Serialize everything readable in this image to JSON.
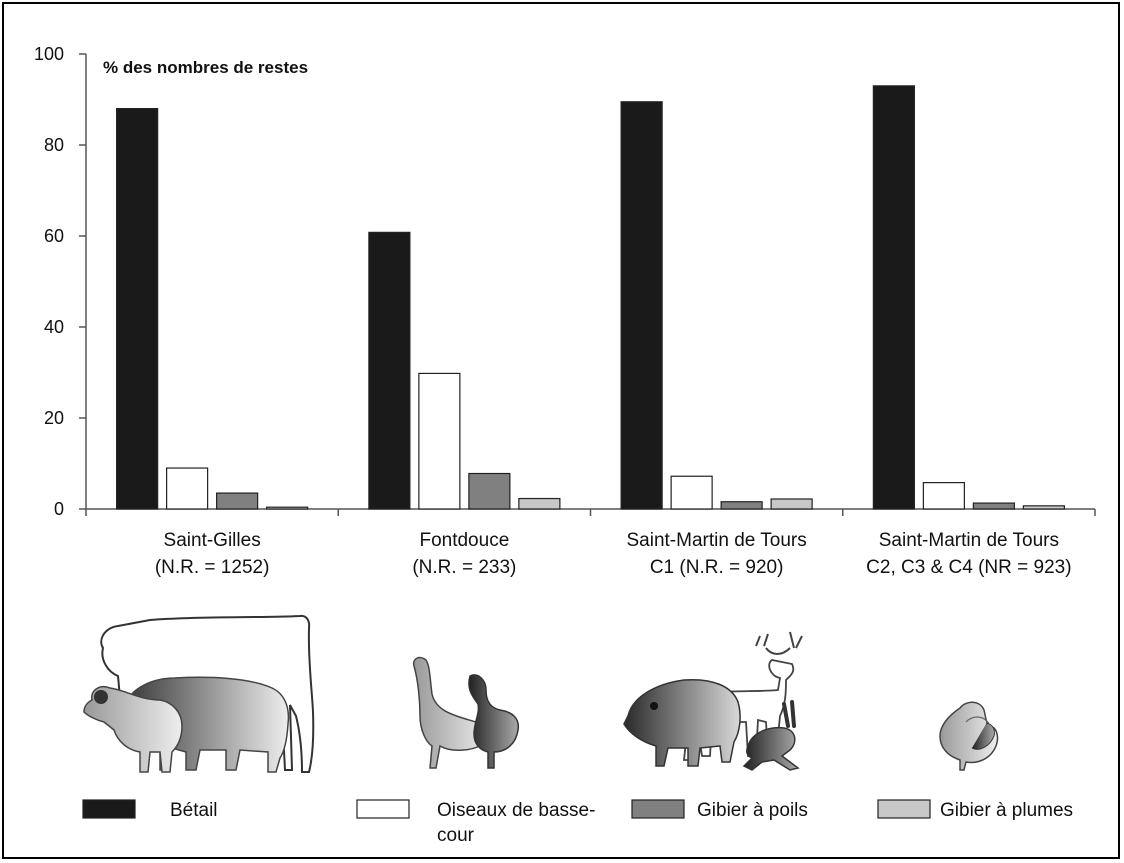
{
  "chart_data": {
    "type": "bar",
    "ylabel": "% des nombres de restes",
    "ylim": [
      0,
      100
    ],
    "yticks": [
      0,
      20,
      40,
      60,
      80,
      100
    ],
    "categories": [
      [
        "Saint-Gilles",
        "(N.R. = 1252)"
      ],
      [
        "Fontdouce",
        "(N.R. = 233)"
      ],
      [
        "Saint-Martin de Tours",
        "C1 (N.R. = 920)"
      ],
      [
        "Saint-Martin de Tours",
        "C2, C3 & C4 (NR = 923)"
      ]
    ],
    "series": [
      {
        "name": "Bétail",
        "color": "#1a1a1a",
        "values": [
          88,
          60.8,
          89.5,
          93
        ]
      },
      {
        "name": [
          "Oiseaux de basse-",
          "cour"
        ],
        "color": "#ffffff",
        "values": [
          9,
          29.8,
          7.2,
          5.8
        ]
      },
      {
        "name": "Gibier à poils",
        "color": "#808080",
        "values": [
          3.5,
          7.8,
          1.6,
          1.3
        ]
      },
      {
        "name": "Gibier à plumes",
        "color": "#c8c8c8",
        "values": [
          0.4,
          2.3,
          2.2,
          0.7
        ]
      }
    ],
    "grid": false,
    "legend": "bottom",
    "illustrations": [
      "livestock-icon",
      "poultry-icon",
      "game-mammal-icon",
      "game-bird-icon"
    ]
  }
}
